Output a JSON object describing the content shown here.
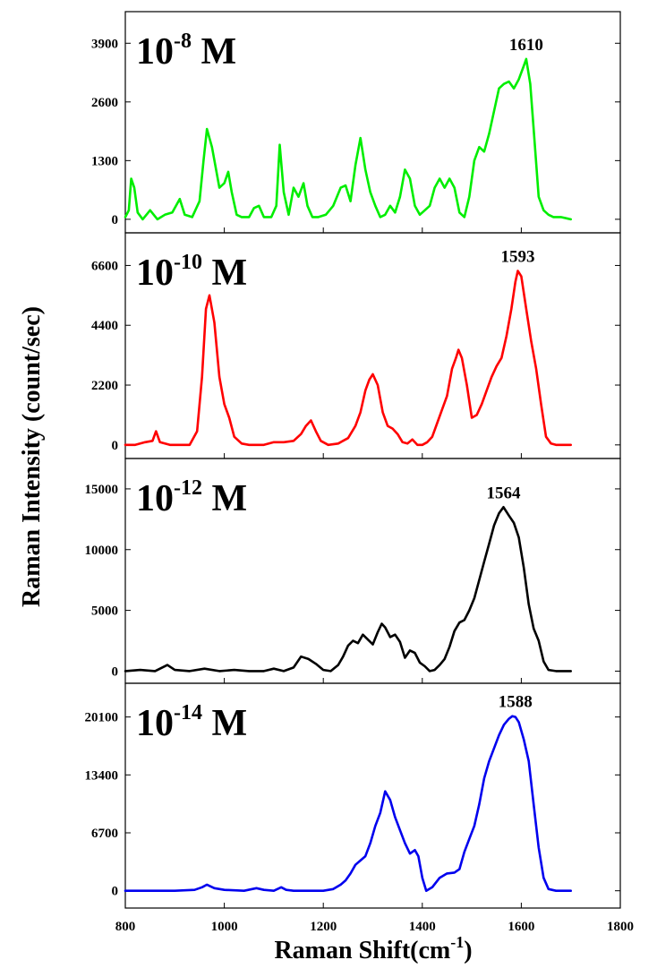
{
  "chart_data": {
    "type": "line",
    "xlabel_main": "Raman Shift(cm",
    "xlabel_sup": "-1",
    "xlabel_tail": ")",
    "ylabel": "Raman Intensity (count/sec)",
    "xlim": [
      800,
      1800
    ],
    "xticks": [
      "800",
      "1000",
      "1200",
      "1400",
      "1600",
      "1800"
    ],
    "panels": [
      {
        "label_base": "10",
        "label_exp": "-8",
        "label_unit": " M",
        "color": "#00ee00",
        "ylim": [
          -300,
          4600
        ],
        "yticks": [
          0,
          1300,
          2600,
          3900
        ],
        "ytick_labels": [
          "0",
          "1300",
          "2600",
          "3900"
        ],
        "peak_x": 1610,
        "peak_label": "1610",
        "series": {
          "x": [
            800,
            807,
            812,
            818,
            825,
            835,
            850,
            865,
            880,
            895,
            910,
            920,
            935,
            950,
            958,
            965,
            975,
            990,
            1000,
            1008,
            1015,
            1025,
            1035,
            1050,
            1060,
            1070,
            1080,
            1095,
            1105,
            1112,
            1120,
            1130,
            1140,
            1150,
            1160,
            1168,
            1178,
            1190,
            1205,
            1220,
            1235,
            1245,
            1255,
            1265,
            1275,
            1285,
            1295,
            1305,
            1315,
            1325,
            1335,
            1345,
            1355,
            1365,
            1375,
            1385,
            1395,
            1405,
            1415,
            1425,
            1435,
            1445,
            1455,
            1465,
            1475,
            1485,
            1495,
            1505,
            1515,
            1525,
            1535,
            1545,
            1555,
            1565,
            1575,
            1585,
            1595,
            1605,
            1610,
            1618,
            1625,
            1635,
            1645,
            1655,
            1665,
            1680,
            1700
          ],
          "y": [
            50,
            200,
            900,
            700,
            150,
            0,
            200,
            0,
            100,
            150,
            450,
            100,
            50,
            400,
            1300,
            2000,
            1600,
            700,
            800,
            1050,
            600,
            100,
            50,
            50,
            250,
            300,
            50,
            50,
            300,
            1650,
            600,
            100,
            700,
            500,
            800,
            300,
            50,
            50,
            100,
            300,
            700,
            750,
            400,
            1200,
            1800,
            1100,
            600,
            300,
            50,
            100,
            300,
            150,
            500,
            1100,
            900,
            300,
            100,
            200,
            300,
            700,
            900,
            700,
            900,
            700,
            150,
            50,
            500,
            1300,
            1600,
            1500,
            1900,
            2400,
            2900,
            3000,
            3050,
            2900,
            3100,
            3400,
            3550,
            3000,
            2000,
            500,
            200,
            100,
            50,
            50,
            0
          ]
        }
      },
      {
        "label_base": "10",
        "label_exp": "-10",
        "label_unit": " M",
        "color": "#ff0000",
        "ylim": [
          -500,
          7800
        ],
        "yticks": [
          0,
          2200,
          4400,
          6600
        ],
        "ytick_labels": [
          "0",
          "2200",
          "4400",
          "6600"
        ],
        "peak_x": 1593,
        "peak_label": "1593",
        "series": {
          "x": [
            800,
            820,
            840,
            855,
            862,
            870,
            890,
            910,
            930,
            945,
            955,
            963,
            970,
            980,
            990,
            1000,
            1010,
            1020,
            1035,
            1050,
            1080,
            1100,
            1120,
            1140,
            1155,
            1165,
            1175,
            1185,
            1195,
            1210,
            1230,
            1250,
            1265,
            1275,
            1285,
            1293,
            1300,
            1310,
            1320,
            1330,
            1340,
            1350,
            1360,
            1370,
            1380,
            1390,
            1400,
            1410,
            1420,
            1430,
            1440,
            1450,
            1460,
            1468,
            1473,
            1480,
            1490,
            1500,
            1510,
            1520,
            1530,
            1540,
            1550,
            1560,
            1570,
            1580,
            1588,
            1593,
            1600,
            1610,
            1620,
            1630,
            1640,
            1650,
            1660,
            1670,
            1690,
            1700
          ],
          "y": [
            0,
            0,
            100,
            150,
            500,
            100,
            0,
            0,
            0,
            500,
            2500,
            5000,
            5500,
            4500,
            2500,
            1500,
            1000,
            300,
            50,
            0,
            0,
            100,
            100,
            150,
            400,
            700,
            900,
            500,
            150,
            0,
            50,
            250,
            700,
            1200,
            2000,
            2400,
            2600,
            2200,
            1200,
            700,
            600,
            400,
            100,
            50,
            200,
            0,
            0,
            100,
            300,
            800,
            1300,
            1800,
            2800,
            3200,
            3500,
            3200,
            2200,
            1000,
            1100,
            1500,
            2000,
            2500,
            2900,
            3200,
            4000,
            5000,
            6000,
            6400,
            6200,
            5000,
            3800,
            2800,
            1500,
            300,
            50,
            0,
            0,
            0
          ]
        }
      },
      {
        "label_base": "10",
        "label_exp": "-12",
        "label_unit": " M",
        "color": "#000000",
        "ylim": [
          -1000,
          17500
        ],
        "yticks": [
          0,
          5000,
          10000,
          15000
        ],
        "ytick_labels": [
          "0",
          "5000",
          "10000",
          "15000"
        ],
        "peak_x": 1564,
        "peak_label": "1564",
        "series": {
          "x": [
            800,
            830,
            860,
            885,
            900,
            930,
            960,
            990,
            1020,
            1050,
            1080,
            1100,
            1120,
            1140,
            1155,
            1170,
            1185,
            1200,
            1215,
            1230,
            1240,
            1250,
            1260,
            1270,
            1280,
            1290,
            1300,
            1310,
            1318,
            1325,
            1335,
            1345,
            1355,
            1365,
            1375,
            1385,
            1395,
            1405,
            1415,
            1425,
            1435,
            1445,
            1455,
            1465,
            1475,
            1485,
            1495,
            1505,
            1515,
            1525,
            1535,
            1545,
            1555,
            1564,
            1575,
            1585,
            1595,
            1605,
            1615,
            1625,
            1635,
            1645,
            1655,
            1670,
            1700
          ],
          "y": [
            0,
            100,
            0,
            500,
            100,
            0,
            200,
            0,
            100,
            0,
            0,
            200,
            0,
            300,
            1200,
            1000,
            600,
            100,
            0,
            500,
            1200,
            2100,
            2500,
            2300,
            3000,
            2600,
            2200,
            3200,
            3900,
            3600,
            2800,
            3000,
            2400,
            1100,
            1700,
            1500,
            700,
            400,
            0,
            100,
            500,
            1000,
            2000,
            3300,
            4000,
            4200,
            5000,
            6000,
            7500,
            9000,
            10500,
            12000,
            13000,
            13500,
            12800,
            12200,
            11000,
            8500,
            5500,
            3500,
            2500,
            800,
            100,
            0,
            0
          ]
        }
      },
      {
        "label_base": "10",
        "label_exp": "-14",
        "label_unit": " M",
        "color": "#0000ee",
        "ylim": [
          -2000,
          24000
        ],
        "yticks": [
          0,
          6700,
          13400,
          20100
        ],
        "ytick_labels": [
          "0",
          "6700",
          "13400",
          "20100"
        ],
        "peak_x": 1588,
        "peak_label": "1588",
        "series": {
          "x": [
            800,
            850,
            900,
            940,
            955,
            965,
            980,
            1000,
            1040,
            1065,
            1080,
            1100,
            1115,
            1125,
            1140,
            1170,
            1200,
            1220,
            1235,
            1245,
            1255,
            1265,
            1275,
            1285,
            1295,
            1305,
            1315,
            1325,
            1335,
            1345,
            1355,
            1365,
            1375,
            1385,
            1392,
            1400,
            1408,
            1420,
            1435,
            1450,
            1465,
            1475,
            1485,
            1495,
            1505,
            1515,
            1525,
            1535,
            1545,
            1555,
            1565,
            1575,
            1582,
            1588,
            1595,
            1605,
            1615,
            1625,
            1635,
            1645,
            1655,
            1670,
            1700
          ],
          "y": [
            0,
            0,
            0,
            100,
            400,
            700,
            300,
            100,
            0,
            300,
            100,
            0,
            400,
            100,
            0,
            0,
            0,
            200,
            700,
            1200,
            2000,
            3000,
            3500,
            4000,
            5500,
            7500,
            9000,
            11500,
            10500,
            8500,
            7000,
            5500,
            4300,
            4700,
            4000,
            1500,
            0,
            400,
            1500,
            2000,
            2100,
            2500,
            4500,
            6000,
            7500,
            10000,
            13000,
            15000,
            16500,
            18000,
            19200,
            19900,
            20200,
            20100,
            19500,
            17500,
            15000,
            10000,
            5000,
            1500,
            200,
            0,
            0
          ]
        }
      }
    ]
  }
}
